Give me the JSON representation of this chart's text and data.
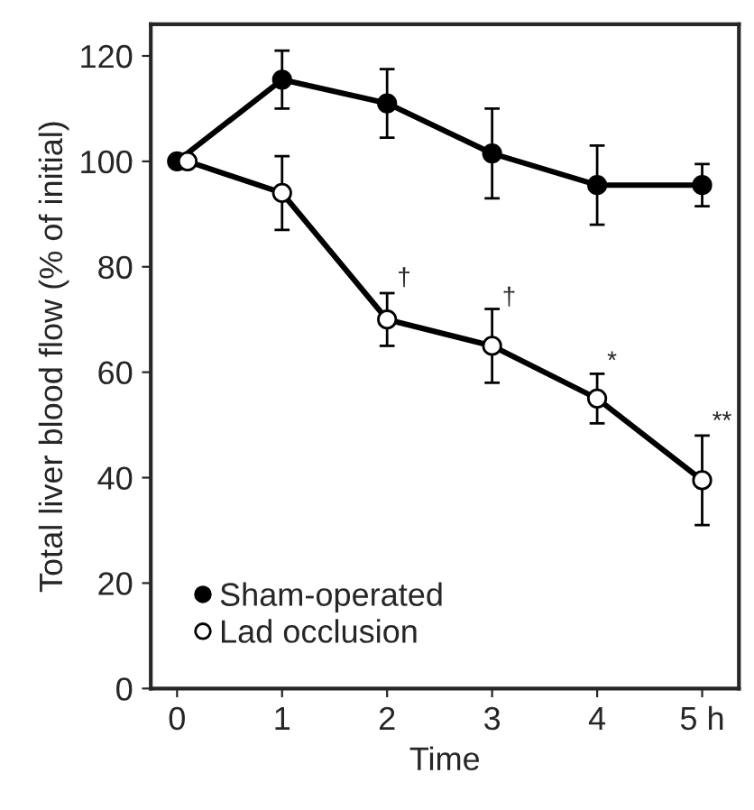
{
  "chart_data": {
    "type": "line",
    "xlabel": "Time",
    "ylabel": "Total liver blood flow (% of initial)",
    "xlim": [
      -0.25,
      5.35
    ],
    "ylim": [
      0,
      126
    ],
    "xticks": [
      0,
      1,
      2,
      3,
      4,
      {
        "value": 5,
        "label": "5 h"
      }
    ],
    "yticks": [
      0,
      20,
      40,
      60,
      80,
      100,
      120
    ],
    "grid": false,
    "legend": "bottom left",
    "marker": "circle",
    "line_style": "solid",
    "series": [
      {
        "name": "Sham-operated",
        "color": "#000000",
        "x": [
          0,
          1,
          2,
          3,
          4,
          5
        ],
        "values": [
          100,
          115.5,
          111,
          101.5,
          95.5,
          95.5
        ],
        "errors": [
          null,
          5.5,
          6.5,
          8.5,
          7.5,
          4
        ]
      },
      {
        "name": "Lad occlusion",
        "color": "#000000",
        "x": [
          0.1,
          1,
          2,
          3,
          4,
          5
        ],
        "values": [
          100,
          94,
          70,
          65,
          55,
          39.5
        ],
        "errors": [
          null,
          7,
          5,
          7,
          4.7,
          8.5
        ]
      }
    ],
    "annotations": [
      {
        "text": "†",
        "x": 2,
        "y": 75.5
      },
      {
        "text": "†",
        "x": 3,
        "y": 71.8
      },
      {
        "text": "*",
        "x": 4,
        "y": 59.7
      },
      {
        "text": "**",
        "x": 5,
        "y": 48.3
      }
    ]
  }
}
